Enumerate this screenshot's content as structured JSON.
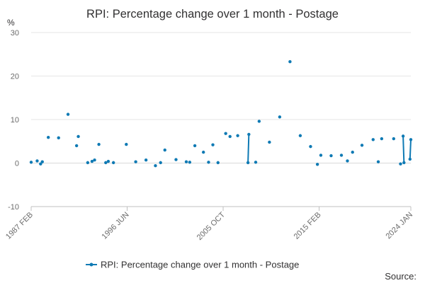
{
  "chart_data": {
    "type": "scatter",
    "title": "RPI: Percentage change over 1 month - Postage",
    "y_unit": "%",
    "ylabel": "",
    "xlabel": "",
    "ylim": [
      -10,
      30
    ],
    "y_ticks": [
      -10,
      0,
      10,
      20,
      30
    ],
    "x_range": [
      "1987-02",
      "2024-01"
    ],
    "x_ticks": [
      {
        "date": "1987-02",
        "label": "1987 FEB"
      },
      {
        "date": "1996-06",
        "label": "1996 JUN"
      },
      {
        "date": "2005-10",
        "label": "2005 OCT"
      },
      {
        "date": "2015-02",
        "label": "2015 FEB"
      },
      {
        "date": "2024-01",
        "label": "2024 JAN"
      }
    ],
    "grid": "horizontal",
    "legend_position": "bottom",
    "series": [
      {
        "name": "RPI: Percentage change over 1 month - Postage",
        "color": "#0f7ab4",
        "points": [
          {
            "date": "1987-02",
            "value": 0.2
          },
          {
            "date": "1987-09",
            "value": 0.5
          },
          {
            "date": "1988-01",
            "value": -0.2
          },
          {
            "date": "1988-03",
            "value": 0.3
          },
          {
            "date": "1988-10",
            "value": 5.9
          },
          {
            "date": "1989-10",
            "value": 5.8
          },
          {
            "date": "1990-09",
            "value": 11.2
          },
          {
            "date": "1991-07",
            "value": 4.0
          },
          {
            "date": "1991-09",
            "value": 6.1
          },
          {
            "date": "1992-08",
            "value": 0.1
          },
          {
            "date": "1993-01",
            "value": 0.4
          },
          {
            "date": "1993-04",
            "value": 0.7
          },
          {
            "date": "1993-09",
            "value": 4.3
          },
          {
            "date": "1994-05",
            "value": 0.1
          },
          {
            "date": "1994-08",
            "value": 0.4
          },
          {
            "date": "1995-02",
            "value": 0.1
          },
          {
            "date": "1996-05",
            "value": 4.3
          },
          {
            "date": "1997-04",
            "value": 0.3
          },
          {
            "date": "1998-04",
            "value": 0.7
          },
          {
            "date": "1999-03",
            "value": -0.6
          },
          {
            "date": "1999-09",
            "value": 0.1
          },
          {
            "date": "2000-02",
            "value": 3.0
          },
          {
            "date": "2001-03",
            "value": 0.8
          },
          {
            "date": "2002-03",
            "value": 0.3
          },
          {
            "date": "2002-07",
            "value": 0.2
          },
          {
            "date": "2003-01",
            "value": 4.0
          },
          {
            "date": "2003-11",
            "value": 2.5
          },
          {
            "date": "2004-05",
            "value": 0.2
          },
          {
            "date": "2004-10",
            "value": 4.2
          },
          {
            "date": "2005-04",
            "value": 0.1
          },
          {
            "date": "2006-01",
            "value": 6.8
          },
          {
            "date": "2006-06",
            "value": 6.1
          },
          {
            "date": "2007-03",
            "value": 6.3
          },
          {
            "date": "2008-03",
            "value": 0.1
          },
          {
            "date": "2008-04",
            "value": 6.6
          },
          {
            "date": "2008-12",
            "value": 0.2
          },
          {
            "date": "2009-04",
            "value": 9.6
          },
          {
            "date": "2010-04",
            "value": 4.8
          },
          {
            "date": "2011-04",
            "value": 10.6
          },
          {
            "date": "2012-04",
            "value": 23.3
          },
          {
            "date": "2013-04",
            "value": 6.3
          },
          {
            "date": "2014-04",
            "value": 3.8
          },
          {
            "date": "2014-12",
            "value": -0.3
          },
          {
            "date": "2015-04",
            "value": 1.8
          },
          {
            "date": "2016-04",
            "value": 1.7
          },
          {
            "date": "2017-04",
            "value": 1.8
          },
          {
            "date": "2017-11",
            "value": 0.5
          },
          {
            "date": "2018-05",
            "value": 2.5
          },
          {
            "date": "2019-04",
            "value": 4.1
          },
          {
            "date": "2020-05",
            "value": 5.4
          },
          {
            "date": "2020-11",
            "value": 0.3
          },
          {
            "date": "2021-03",
            "value": 5.6
          },
          {
            "date": "2022-05",
            "value": 5.6
          },
          {
            "date": "2023-01",
            "value": -0.2
          },
          {
            "date": "2023-04",
            "value": 6.2
          },
          {
            "date": "2023-05",
            "value": 0.1
          },
          {
            "date": "2023-12",
            "value": 0.9
          },
          {
            "date": "2024-01",
            "value": 5.4
          }
        ]
      }
    ],
    "source_label": "Source:"
  }
}
